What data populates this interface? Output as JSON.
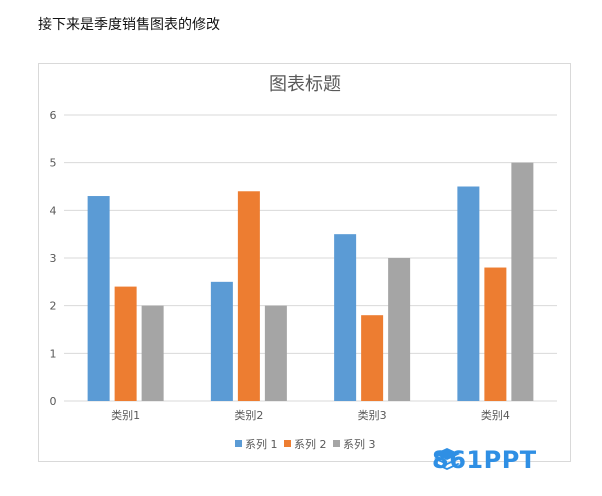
{
  "intro_text": "接下来是季度销售图表的修改",
  "watermark": "861PPT",
  "colors": {
    "series1": "#5b9bd5",
    "series2": "#ed7d31",
    "series3": "#a5a5a5",
    "grid": "#d9d9d9",
    "logo": "#2f8fe4"
  },
  "chart_data": {
    "type": "bar",
    "title": "图表标题",
    "categories": [
      "类别1",
      "类别2",
      "类别3",
      "类别4"
    ],
    "series": [
      {
        "name": "系列 1",
        "values": [
          4.3,
          2.5,
          3.5,
          4.5
        ]
      },
      {
        "name": "系列 2",
        "values": [
          2.4,
          4.4,
          1.8,
          2.8
        ]
      },
      {
        "name": "系列 3",
        "values": [
          2,
          2,
          3,
          5
        ]
      }
    ],
    "yticks": [
      0,
      1,
      2,
      3,
      4,
      5,
      6
    ],
    "ylim": [
      0,
      6
    ],
    "grid": true,
    "legend_position": "bottom"
  }
}
